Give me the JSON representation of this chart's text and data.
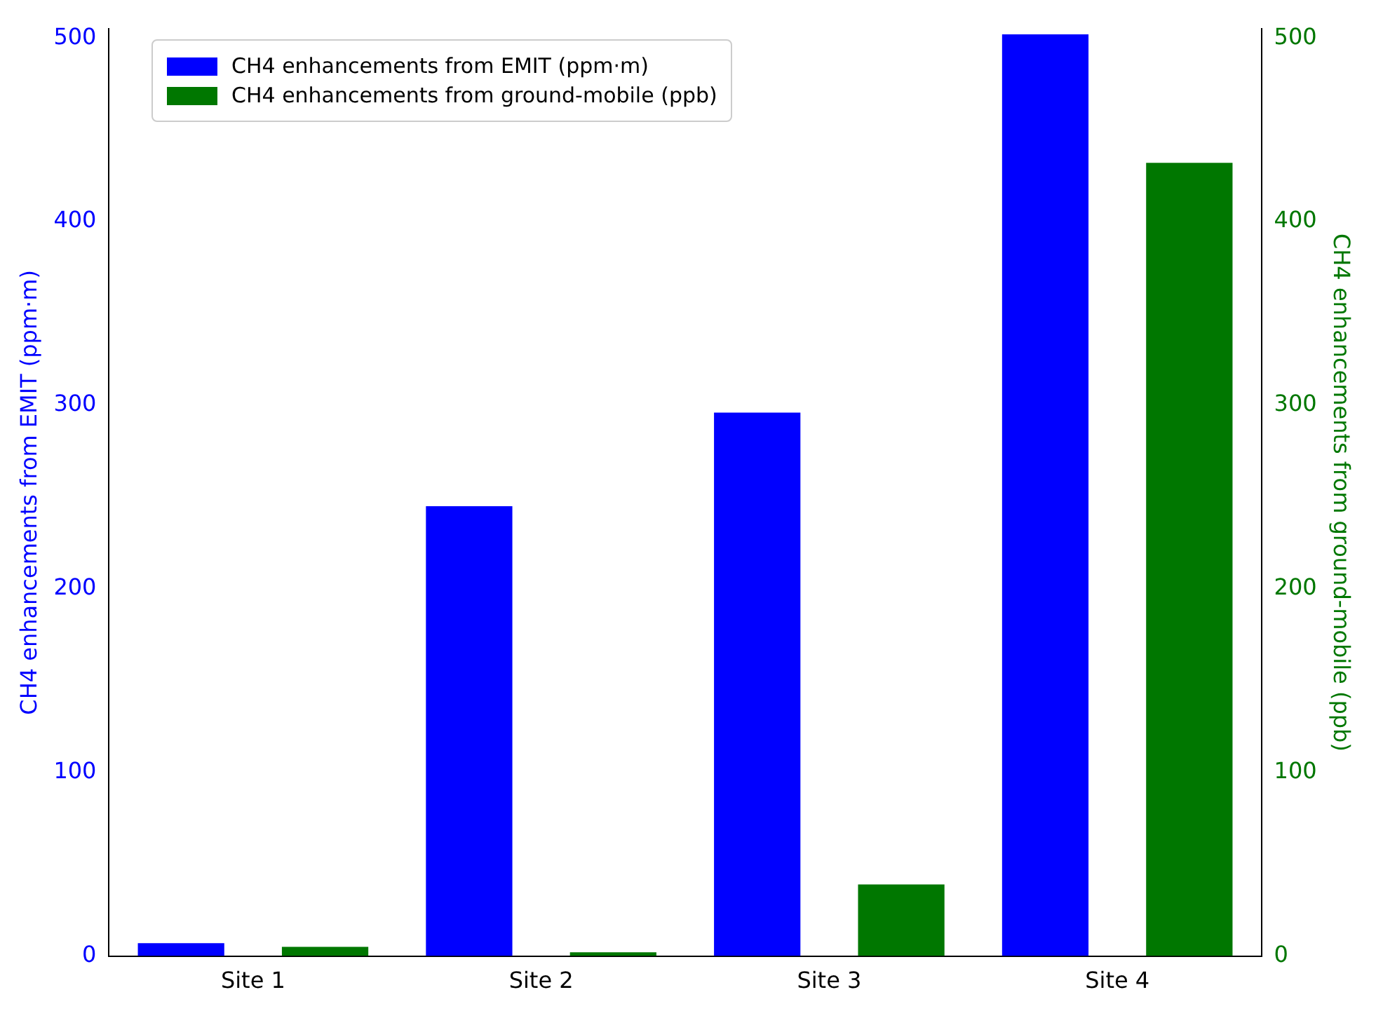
{
  "chart_data": {
    "type": "bar",
    "categories": [
      "Site 1",
      "Site 2",
      "Site 3",
      "Site 4"
    ],
    "ylabel": "CH4 enhancements from EMIT (ppm·m)",
    "y2label": "CH4 enhancements from ground-mobile (ppb)",
    "ylim": [
      0,
      505
    ],
    "yticks": [
      0,
      100,
      200,
      300,
      400,
      500
    ],
    "y2lim": [
      0,
      505
    ],
    "y2ticks": [
      0,
      100,
      200,
      300,
      400,
      500
    ],
    "series": [
      {
        "name": "CH4 enhancements from EMIT (ppm·m)",
        "color": "#0000ff",
        "values": [
          7,
          245,
          296,
          502
        ]
      },
      {
        "name": "CH4 enhancements from ground-mobile (ppb)",
        "color": "#007700",
        "axis": "y2",
        "values": [
          5,
          2,
          39,
          432
        ]
      }
    ],
    "legend": "top left",
    "grid": false
  }
}
